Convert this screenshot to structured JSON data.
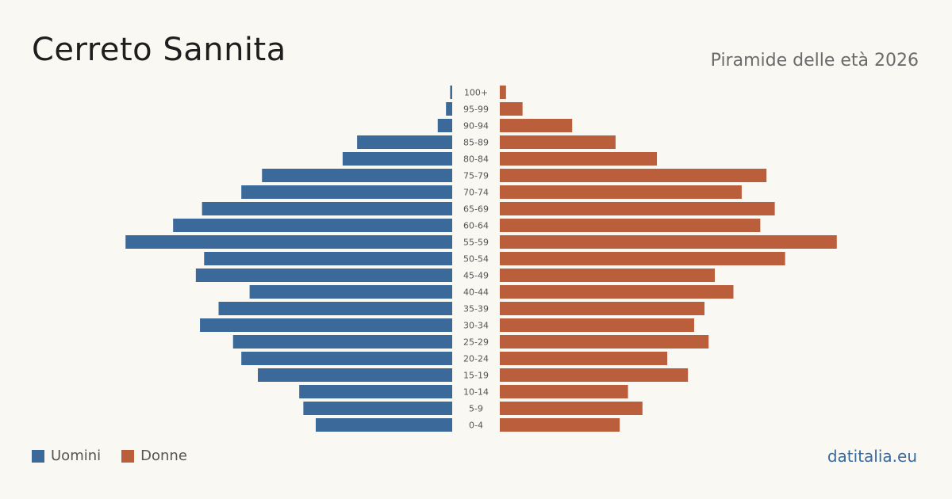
{
  "title": "Cerreto Sannita",
  "subtitle": "Piramide delle età 2026",
  "brand": "datitalia.eu",
  "legend": {
    "men_label": "Uomini",
    "women_label": "Donne"
  },
  "colors": {
    "men": "#3b6a9a",
    "women": "#bb5e3c"
  },
  "chart_data": {
    "type": "bar",
    "orientation": "horizontal",
    "categories": [
      "100+",
      "95-99",
      "90-94",
      "85-89",
      "80-84",
      "75-79",
      "70-74",
      "65-69",
      "60-64",
      "55-59",
      "50-54",
      "45-49",
      "40-44",
      "35-39",
      "30-34",
      "25-29",
      "20-24",
      "15-19",
      "10-14",
      "5-9",
      "0-4"
    ],
    "series": [
      {
        "name": "Uomini",
        "values": [
          1,
          3,
          7,
          46,
          53,
          92,
          102,
          121,
          135,
          158,
          120,
          124,
          98,
          113,
          122,
          106,
          102,
          94,
          74,
          72,
          66
        ]
      },
      {
        "name": "Donne",
        "values": [
          3,
          11,
          35,
          56,
          76,
          129,
          117,
          133,
          126,
          163,
          138,
          104,
          113,
          99,
          94,
          101,
          81,
          91,
          62,
          69,
          58
        ]
      }
    ],
    "xlim": [
      0,
      165
    ],
    "grid": false,
    "legend_position": "bottom-left"
  }
}
